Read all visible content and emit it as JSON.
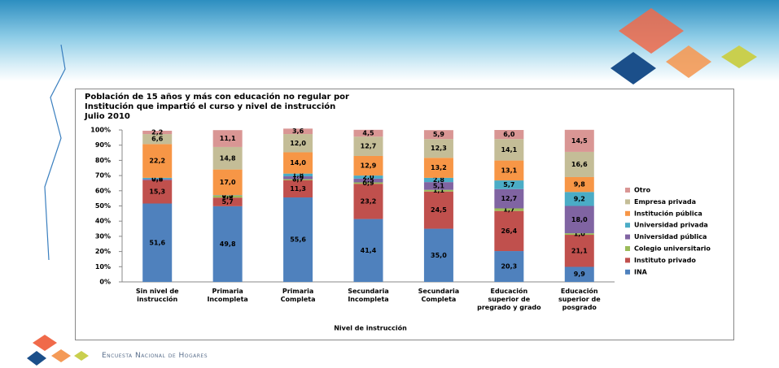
{
  "chart_data": {
    "type": "stacked-bar",
    "title": "Población de 15 años y más con educación no regular por Institución que impartió el curso y nivel de instrucción",
    "subtitle": "Julio 2010",
    "x_label": "Nivel de instrucción",
    "categories": [
      "Sin nivel de instrucción",
      "Primaria Incompleta",
      "Primaria Completa",
      "Secundaria Incompleta",
      "Secundaria Completa",
      "Educación superior de pregrado y grado",
      "Educación superior de posgrado"
    ],
    "series": [
      {
        "name": "INA",
        "color": "#4f81bd",
        "values": [
          51.6,
          49.8,
          55.6,
          41.4,
          35.0,
          20.3,
          9.9
        ],
        "value_labels": [
          "51,6",
          "49,8",
          "55,6",
          "41,4",
          "35,0",
          "20,3",
          "9,9"
        ]
      },
      {
        "name": "Instituto privado",
        "color": "#c0504d",
        "values": [
          15.3,
          5.7,
          11.3,
          23.2,
          24.5,
          26.4,
          21.1
        ],
        "value_labels": [
          "15,3",
          "5,7",
          "11,3",
          "23,2",
          "24,5",
          "26,4",
          "21,1"
        ]
      },
      {
        "name": "Colegio universitario",
        "color": "#9bbb59",
        "values": [
          0,
          1.2,
          0.7,
          0.9,
          1.1,
          1.7,
          1.0
        ],
        "value_labels": [
          null,
          "1,2",
          "0,7",
          "0,9",
          "1,1",
          "1,7",
          "1,0"
        ]
      },
      {
        "name": "Universidad pública",
        "color": "#8064a2",
        "values": [
          0.8,
          0.0,
          1.9,
          2.5,
          5.1,
          12.7,
          18.0
        ],
        "value_labels": [
          "0,8",
          "0,0",
          "1,9",
          "2,5",
          "5,1",
          "12,7",
          "18,0"
        ]
      },
      {
        "name": "Universidad privada",
        "color": "#4bacc6",
        "values": [
          0.8,
          0.3,
          1.8,
          2.0,
          2.8,
          5.7,
          9.2
        ],
        "value_labels": [
          "0,8",
          "0,3",
          "1,8",
          "2,0",
          "2,8",
          "5,7",
          "9,2"
        ]
      },
      {
        "name": "Institución pública",
        "color": "#f79646",
        "values": [
          22.2,
          17.0,
          14.0,
          12.9,
          13.2,
          13.1,
          9.8
        ],
        "value_labels": [
          "22,2",
          "17,0",
          "14,0",
          "12,9",
          "13,2",
          "13,1",
          "9,8"
        ]
      },
      {
        "name": "Empresa privada",
        "color": "#c4bd97",
        "values": [
          6.6,
          14.8,
          12.0,
          12.7,
          12.3,
          14.1,
          16.6
        ],
        "value_labels": [
          "6,6",
          "14,8",
          "12,0",
          "12,7",
          "12,3",
          "14,1",
          "16,6"
        ]
      },
      {
        "name": "Otro",
        "color": "#d99694",
        "values": [
          2.2,
          11.1,
          3.6,
          4.5,
          5.9,
          6.0,
          14.5
        ],
        "value_labels": [
          "2,2",
          "11,1",
          "3,6",
          "4,5",
          "5,9",
          "6,0",
          "14,5"
        ]
      }
    ],
    "ylim": [
      0,
      100
    ],
    "yticks": [
      {
        "value": 0,
        "label": "0%"
      },
      {
        "value": 10,
        "label": "10%"
      },
      {
        "value": 20,
        "label": "20%"
      },
      {
        "value": 30,
        "label": "30%"
      },
      {
        "value": 40,
        "label": "40%"
      },
      {
        "value": 50,
        "label": "50%"
      },
      {
        "value": 60,
        "label": "60%"
      },
      {
        "value": 70,
        "label": "70%"
      },
      {
        "value": 80,
        "label": "80%"
      },
      {
        "value": 90,
        "label": "90%"
      },
      {
        "value": 100,
        "label": "100%"
      }
    ],
    "legend": "right"
  },
  "footer": "Encuesta Nacional de Hogares"
}
